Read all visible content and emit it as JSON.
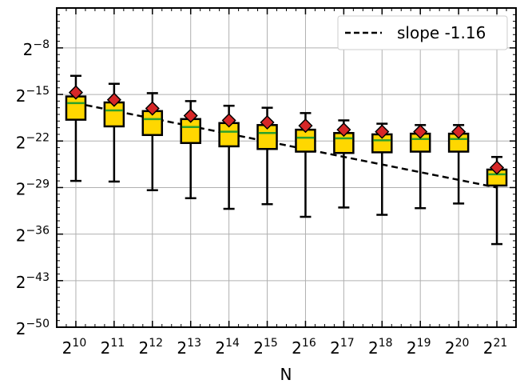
{
  "chart_data": {
    "type": "box",
    "title": "",
    "xlabel": "N",
    "ylabel": "",
    "x_scale": "log2",
    "y_scale": "log2",
    "x_ticks_exp": [
      10,
      11,
      12,
      13,
      14,
      15,
      16,
      17,
      18,
      19,
      20,
      21
    ],
    "y_ticks_exp": [
      -8,
      -15,
      -22,
      -29,
      -36,
      -43,
      -50
    ],
    "tick_base": "2",
    "ylim_exp": [
      -50,
      -2
    ],
    "grid": true,
    "legend": {
      "position": "top-right",
      "entries": [
        {
          "label": "slope -1.16",
          "style": "dashed",
          "color": "#000000"
        }
      ]
    },
    "slope_line": {
      "slope": -1.16,
      "x_exp": [
        10,
        21
      ],
      "y_exp": [
        -16.3,
        -29.0
      ]
    },
    "boxes": [
      {
        "x_exp": 10,
        "whisker_low": -28.0,
        "q1": -18.8,
        "median": -16.3,
        "q3": -15.3,
        "whisker_high": -12.2,
        "mean": -14.7
      },
      {
        "x_exp": 11,
        "whisker_low": -28.1,
        "q1": -19.8,
        "median": -17.4,
        "q3": -16.2,
        "whisker_high": -13.4,
        "mean": -15.8
      },
      {
        "x_exp": 12,
        "whisker_low": -29.4,
        "q1": -21.1,
        "median": -18.7,
        "q3": -17.5,
        "whisker_high": -14.8,
        "mean": -17.1
      },
      {
        "x_exp": 13,
        "whisker_low": -30.6,
        "q1": -22.3,
        "median": -19.9,
        "q3": -18.7,
        "whisker_high": -16.0,
        "mean": -18.2
      },
      {
        "x_exp": 14,
        "whisker_low": -32.2,
        "q1": -22.8,
        "median": -20.6,
        "q3": -19.3,
        "whisker_high": -16.7,
        "mean": -18.9
      },
      {
        "x_exp": 15,
        "whisker_low": -31.5,
        "q1": -23.2,
        "median": -20.8,
        "q3": -19.6,
        "whisker_high": -17.0,
        "mean": -19.2
      },
      {
        "x_exp": 16,
        "whisker_low": -33.4,
        "q1": -23.6,
        "median": -21.5,
        "q3": -20.3,
        "whisker_high": -17.8,
        "mean": -19.7
      },
      {
        "x_exp": 17,
        "whisker_low": -32.0,
        "q1": -23.8,
        "median": -21.6,
        "q3": -20.8,
        "whisker_high": -18.9,
        "mean": -20.3
      },
      {
        "x_exp": 18,
        "whisker_low": -33.1,
        "q1": -23.7,
        "median": -21.9,
        "q3": -21.0,
        "whisker_high": -19.4,
        "mean": -20.6
      },
      {
        "x_exp": 19,
        "whisker_low": -32.1,
        "q1": -23.6,
        "median": -21.7,
        "q3": -20.9,
        "whisker_high": -19.6,
        "mean": -20.6
      },
      {
        "x_exp": 20,
        "whisker_low": -31.4,
        "q1": -23.6,
        "median": -21.7,
        "q3": -20.9,
        "whisker_high": -19.6,
        "mean": -20.6
      },
      {
        "x_exp": 21,
        "whisker_low": -37.5,
        "q1": -28.7,
        "median": -27.0,
        "q3": -26.3,
        "whisker_high": -24.4,
        "mean": -26.0
      }
    ],
    "colors": {
      "box_fill": "#ffd700",
      "box_edge": "#000000",
      "median": "#2ca02c",
      "mean_marker": "#d62728",
      "grid": "#b0b0b0",
      "slope_line": "#000000"
    }
  }
}
